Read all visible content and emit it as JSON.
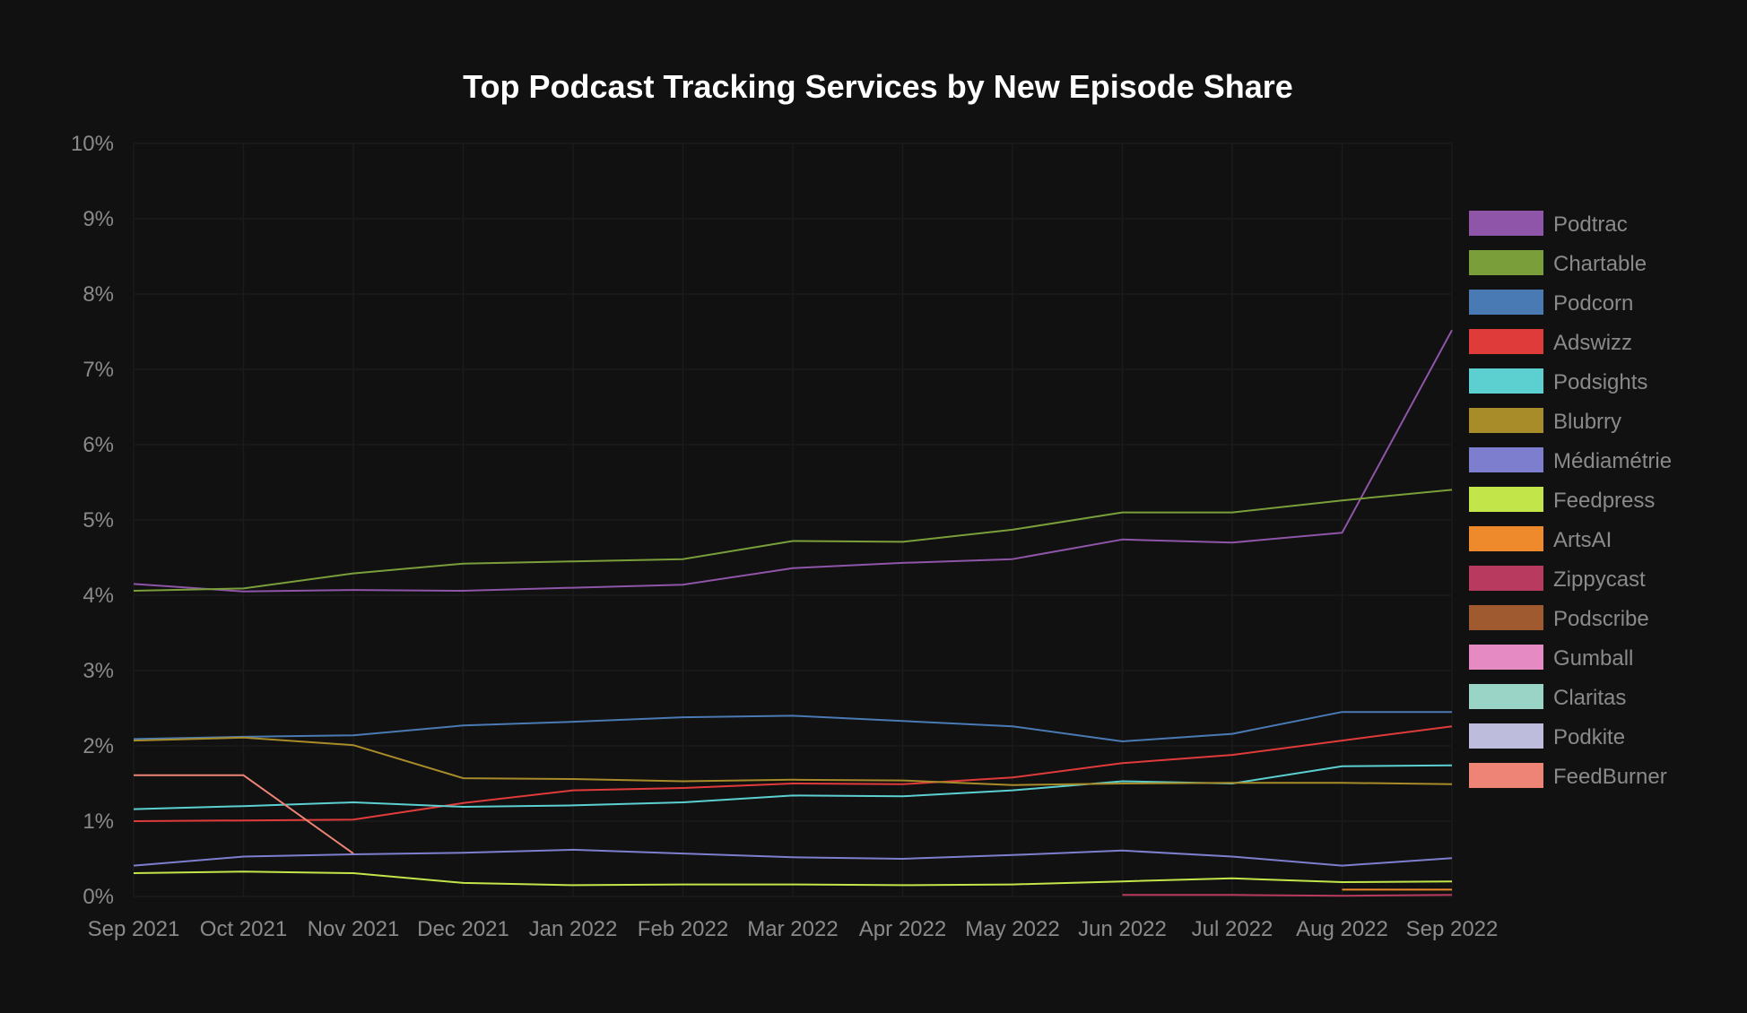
{
  "chart_data": {
    "type": "line",
    "title": "Top Podcast Tracking Services by New Episode Share",
    "xlabel": "",
    "ylabel": "",
    "categories": [
      "Sep 2021",
      "Oct 2021",
      "Nov 2021",
      "Dec 2021",
      "Jan 2022",
      "Feb 2022",
      "Mar 2022",
      "Apr 2022",
      "May 2022",
      "Jun 2022",
      "Jul 2022",
      "Aug 2022",
      "Sep 2022"
    ],
    "ylim": [
      0,
      10
    ],
    "yticks": [
      "0%",
      "1%",
      "2%",
      "3%",
      "4%",
      "5%",
      "6%",
      "7%",
      "8%",
      "9%",
      "10%"
    ],
    "grid": true,
    "legend_position": "right",
    "series": [
      {
        "name": "Podtrac",
        "color": "#8e55a8",
        "values": [
          4.15,
          4.05,
          4.07,
          4.06,
          4.1,
          4.14,
          4.36,
          4.43,
          4.48,
          4.74,
          4.7,
          4.83,
          7.52
        ]
      },
      {
        "name": "Chartable",
        "color": "#7a9e3a",
        "values": [
          4.06,
          4.09,
          4.29,
          4.42,
          4.45,
          4.48,
          4.72,
          4.71,
          4.87,
          5.1,
          5.1,
          5.26,
          5.4
        ]
      },
      {
        "name": "Podcorn",
        "color": "#4a7ab4",
        "values": [
          2.09,
          2.12,
          2.14,
          2.27,
          2.32,
          2.38,
          2.4,
          2.33,
          2.26,
          2.06,
          2.16,
          2.45,
          2.45
        ]
      },
      {
        "name": "Adswizz",
        "color": "#e03b3b",
        "values": [
          1.0,
          1.01,
          1.02,
          1.24,
          1.41,
          1.44,
          1.5,
          1.49,
          1.58,
          1.77,
          1.88,
          2.07,
          2.26
        ]
      },
      {
        "name": "Podsights",
        "color": "#5ccfd0",
        "values": [
          1.16,
          1.2,
          1.25,
          1.19,
          1.21,
          1.25,
          1.34,
          1.33,
          1.41,
          1.53,
          1.5,
          1.73,
          1.74
        ]
      },
      {
        "name": "Blubrry",
        "color": "#a88c2a",
        "values": [
          2.07,
          2.11,
          2.01,
          1.57,
          1.56,
          1.53,
          1.55,
          1.54,
          1.48,
          1.5,
          1.51,
          1.51,
          1.49
        ]
      },
      {
        "name": "Médiamétrie",
        "color": "#7e7ecf",
        "values": [
          0.41,
          0.53,
          0.56,
          0.58,
          0.62,
          0.57,
          0.52,
          0.5,
          0.55,
          0.61,
          0.53,
          0.41,
          0.51
        ]
      },
      {
        "name": "Feedpress",
        "color": "#c2e54a",
        "values": [
          0.31,
          0.33,
          0.31,
          0.18,
          0.15,
          0.16,
          0.16,
          0.15,
          0.16,
          0.2,
          0.24,
          0.19,
          0.2
        ]
      },
      {
        "name": "ArtsAI",
        "color": "#ef8a2c",
        "values": [
          null,
          null,
          null,
          null,
          null,
          null,
          null,
          null,
          null,
          null,
          null,
          0.09,
          0.09
        ]
      },
      {
        "name": "Zippycast",
        "color": "#b83a5e",
        "values": [
          null,
          null,
          null,
          null,
          null,
          null,
          null,
          null,
          null,
          0.02,
          0.02,
          0.01,
          0.02
        ]
      },
      {
        "name": "Podscribe",
        "color": "#a05a30",
        "values": [
          null,
          null,
          null,
          null,
          null,
          null,
          null,
          null,
          null,
          null,
          null,
          null,
          null
        ]
      },
      {
        "name": "Gumball",
        "color": "#e58ac2",
        "values": [
          null,
          null,
          null,
          null,
          null,
          null,
          null,
          null,
          null,
          null,
          null,
          null,
          null
        ]
      },
      {
        "name": "Claritas",
        "color": "#99d4c7",
        "values": [
          null,
          null,
          null,
          null,
          null,
          null,
          null,
          null,
          null,
          null,
          null,
          null,
          null
        ]
      },
      {
        "name": "Podkite",
        "color": "#bdbcdc",
        "values": [
          null,
          null,
          null,
          null,
          null,
          null,
          null,
          null,
          null,
          null,
          null,
          null,
          null
        ]
      },
      {
        "name": "FeedBurner",
        "color": "#ed8475",
        "values": [
          1.61,
          1.61,
          0.57,
          null,
          null,
          null,
          null,
          null,
          null,
          null,
          null,
          null,
          null
        ]
      }
    ]
  }
}
